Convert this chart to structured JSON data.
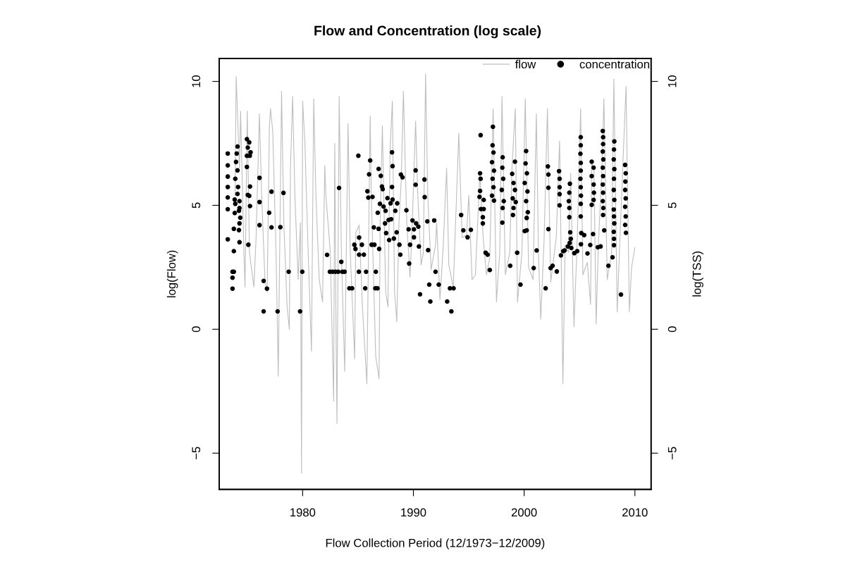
{
  "chart_data": {
    "type": "line",
    "title": "Flow and Concentration (log scale)",
    "xlabel": "Flow Collection Period (12/1973−12/2009)",
    "ylabel": "log(Flow)",
    "y2label": "log(TSS)",
    "xlim": [
      1972.47,
      2011.46
    ],
    "xticks": [
      1980,
      1990,
      2000,
      2010
    ],
    "ylim": [
      -6.46,
      10.92
    ],
    "yticks": [
      {
        "value": -5,
        "label": "−5"
      },
      0,
      5,
      10
    ],
    "y2lim": [
      -6.46,
      10.92
    ],
    "y2ticks": [
      {
        "value": -5,
        "label": "−5"
      },
      0,
      5,
      10
    ],
    "legend": "top right",
    "grid": false,
    "series": [
      {
        "name": "flow",
        "color": "#bebebe",
        "marker": "none",
        "line_style": "solid",
        "x": [
          1973.9,
          1974.0,
          1974.3,
          1974.4,
          1974.7,
          1974.8,
          1975.0,
          1975.2,
          1975.6,
          1975.8,
          1976.1,
          1976.3,
          1976.6,
          1976.8,
          1977.0,
          1977.1,
          1977.3,
          1977.6,
          1977.8,
          1977.9,
          1978.1,
          1978.3,
          1978.6,
          1978.8,
          1978.9,
          1979.1,
          1979.3,
          1979.6,
          1979.8,
          1979.9,
          1980.0,
          1980.2,
          1980.5,
          1980.8,
          1981.0,
          1981.2,
          1981.5,
          1981.8,
          1982.0,
          1982.1,
          1982.5,
          1982.8,
          1982.9,
          1983.0,
          1983.1,
          1983.3,
          1983.5,
          1983.8,
          1984.1,
          1984.3,
          1984.7,
          1984.8,
          1985.1,
          1985.4,
          1985.8,
          1986.1,
          1986.2,
          1986.6,
          1986.9,
          1987.0,
          1987.2,
          1987.5,
          1987.7,
          1987.9,
          1988.1,
          1988.3,
          1988.5,
          1988.7,
          1988.9,
          1989.1,
          1989.4,
          1989.7,
          1989.9,
          1990.2,
          1990.4,
          1990.7,
          1990.9,
          1991.1,
          1991.3,
          1991.6,
          1992.0,
          1992.1,
          1992.4,
          1992.7,
          1993.0,
          1993.2,
          1993.6,
          1994.1,
          1994.4,
          1994.8,
          1995.0,
          1995.3,
          1995.6,
          1996.0,
          1996.3,
          1996.6,
          1996.9,
          1997.2,
          1997.5,
          1997.8,
          1998.0,
          1998.3,
          1998.7,
          1998.9,
          1999.2,
          1999.4,
          1999.8,
          2000.1,
          2000.4,
          2000.8,
          2001.1,
          2001.3,
          2001.5,
          2001.8,
          2002.1,
          2002.4,
          2002.9,
          2003.2,
          2003.5,
          2003.7,
          2004.0,
          2004.2,
          2004.5,
          2004.8,
          2005.1,
          2005.3,
          2005.7,
          2006.0,
          2006.1,
          2006.3,
          2006.5,
          2006.7,
          2007.0,
          2007.2,
          2007.5,
          2007.9,
          2008.1,
          2008.4,
          2008.6,
          2008.9,
          2009.2,
          2009.5,
          2009.7,
          2010.0
        ],
        "values": [
          5.4,
          10.2,
          6.5,
          8.8,
          3.1,
          1.7,
          8.8,
          3.1,
          1.7,
          3.7,
          8.7,
          5.4,
          2.0,
          1.5,
          8.2,
          8.9,
          8.0,
          3.1,
          -1.9,
          2.0,
          9.6,
          4.3,
          0.9,
          0.0,
          6.5,
          9.4,
          5.4,
          2.0,
          4.3,
          -5.8,
          9.2,
          7.6,
          3.1,
          -0.9,
          9.3,
          5.4,
          2.0,
          1.1,
          6.6,
          5.4,
          3.1,
          -2.9,
          7.5,
          0.9,
          -3.8,
          9.4,
          3.1,
          -1.7,
          8.3,
          3.1,
          -1.2,
          3.9,
          4.2,
          0.9,
          -2.2,
          8.6,
          5.4,
          -1.1,
          -2.0,
          4.3,
          8.2,
          1.5,
          0.9,
          7.3,
          9.2,
          1.5,
          0.3,
          4.3,
          6.0,
          9.6,
          4.3,
          2.1,
          4.3,
          8.4,
          5.4,
          2.6,
          3.1,
          10.3,
          5.4,
          2.4,
          3.4,
          4.3,
          1.2,
          3.4,
          6.5,
          2.6,
          1.7,
          7.9,
          3.7,
          3.8,
          5.4,
          2.0,
          2.2,
          6.3,
          3.7,
          2.2,
          2.9,
          8.9,
          1.1,
          3.1,
          9.4,
          2.2,
          3.1,
          6.5,
          8.9,
          1.1,
          3.1,
          9.3,
          2.5,
          2.0,
          8.7,
          2.9,
          0.4,
          3.6,
          8.9,
          1.9,
          3.7,
          7.6,
          -2.2,
          3.4,
          3.1,
          6.3,
          0.1,
          3.7,
          8.9,
          2.2,
          2.7,
          1.0,
          6.7,
          6.5,
          0.2,
          3.4,
          6.2,
          9.3,
          2.0,
          3.1,
          10.1,
          0.7,
          3.1,
          6.5,
          9.8,
          0.7,
          2.5,
          3.3
        ]
      },
      {
        "name": "concentration",
        "type": "scatter",
        "color": "#000000",
        "marker": "circle",
        "x": [
          1973.24,
          1973.24,
          1973.24,
          1973.24,
          1973.24,
          1973.24,
          1973.24,
          1974.12,
          1974.05,
          1973.99,
          1974.12,
          1973.92,
          1974.17,
          1974.12,
          1973.87,
          1974.3,
          1973.92,
          1974.3,
          1974.25,
          1973.87,
          1974.37,
          1974.3,
          1973.79,
          1974.25,
          1974.3,
          1973.79,
          1973.67,
          1973.79,
          1973.67,
          1973.67,
          1974.97,
          1975.18,
          1975.05,
          1975.3,
          1974.97,
          1975.23,
          1974.97,
          1975.25,
          1975.05,
          1975.18,
          1975.25,
          1975.1,
          1976.11,
          1976.11,
          1976.11,
          1976.48,
          1976.78,
          1976.48,
          1976.98,
          1977.19,
          1977.19,
          1977.74,
          1977.99,
          1978.27,
          1978.74,
          1979.77,
          1979.97,
          1982.21,
          1982.46,
          1982.71,
          1982.96,
          1983.22,
          1983.29,
          1983.49,
          1983.59,
          1983.79,
          1984.22,
          1984.47,
          1984.67,
          1984.77,
          1985.03,
          1985.1,
          1985.1,
          1985.35,
          1985.53,
          1985.08,
          1985.65,
          1985.73,
          1985.85,
          1985.93,
          1986.0,
          1986.1,
          1986.31,
          1986.43,
          1986.23,
          1986.48,
          1986.61,
          1986.56,
          1986.76,
          1986.78,
          1986.86,
          1986.91,
          1986.86,
          1987.06,
          1986.98,
          1987.16,
          1987.23,
          1987.31,
          1987.49,
          1987.44,
          1987.54,
          1987.66,
          1987.76,
          1987.81,
          1987.94,
          1987.99,
          1988.07,
          1988.12,
          1988.12,
          1988.07,
          1988.24,
          1988.37,
          1988.49,
          1988.54,
          1988.74,
          1988.82,
          1988.87,
          1989.02,
          1989.37,
          1989.57,
          1989.62,
          1989.7,
          1989.92,
          1990.05,
          1990.05,
          1990.2,
          1990.2,
          1990.25,
          1990.45,
          1990.5,
          1990.6,
          1991.0,
          1991.02,
          1991.26,
          1991.33,
          1991.43,
          1991.53,
          1991.88,
          1992.0,
          1992.29,
          1993.3,
          1993.63,
          1993.05,
          1993.43,
          1994.31,
          1994.51,
          1994.89,
          1995.19,
          1996.07,
          1996.02,
          1996.07,
          1996.02,
          1995.97,
          1996.1,
          1996.35,
          1996.35,
          1996.27,
          1996.27,
          1996.52,
          1996.7,
          1996.9,
          1997.18,
          1997.15,
          1997.23,
          1997.1,
          1997.28,
          1997.15,
          1997.23,
          1997.1,
          1997.28,
          1998.06,
          1998.03,
          1998.11,
          1997.98,
          1998.16,
          1998.06,
          1998.03,
          1998.74,
          1999.17,
          1998.92,
          1999.04,
          1999.17,
          1998.97,
          1999.24,
          1999.04,
          1998.99,
          1999.37,
          1999.67,
          2000.18,
          2000.13,
          2000.25,
          2000.05,
          2000.3,
          2000.18,
          2000.33,
          2000.23,
          2000.05,
          2000.23,
          2000.86,
          2001.13,
          2002.14,
          2002.19,
          2002.19,
          2002.19,
          2001.94,
          2002.39,
          2002.57,
          2002.95,
          2003.15,
          2003.2,
          2003.2,
          2003.2,
          2003.2,
          2003.32,
          2003.53,
          2003.65,
          2004.13,
          2004.08,
          2004.03,
          2004.08,
          2004.08,
          2004.16,
          2004.21,
          2004.11,
          2003.95,
          2004.26,
          2004.53,
          2004.79,
          2005.11,
          2005.11,
          2005.08,
          2005.11,
          2005.11,
          2005.08,
          2005.11,
          2005.13,
          2005.11,
          2005.11,
          2005.16,
          2005.42,
          2005.13,
          2005.72,
          2005.97,
          2006.1,
          2006.27,
          2006.1,
          2006.27,
          2006.3,
          2006.1,
          2006.27,
          2006.22,
          2006.65,
          2006.9,
          2007.1,
          2007.13,
          2007.13,
          2007.1,
          2007.15,
          2007.1,
          2007.13,
          2007.1,
          2007.13,
          2007.1,
          2007.15,
          2007.13,
          2007.23,
          2007.61,
          2008.14,
          2008.11,
          2008.09,
          2008.14,
          2008.11,
          2008.09,
          2008.14,
          2008.09,
          2008.11,
          2008.14,
          2008.09,
          2008.11,
          2008.11,
          2007.98,
          2008.74,
          2009.12,
          2009.17,
          2009.14,
          2009.12,
          2009.17,
          2009.12,
          2009.17,
          2009.12,
          2009.19
        ],
        "values": [
          7.09,
          6.61,
          6.16,
          5.74,
          5.32,
          4.84,
          3.63,
          7.37,
          7.09,
          6.75,
          6.41,
          6.07,
          5.74,
          5.46,
          5.23,
          5.17,
          5.06,
          4.89,
          4.78,
          4.69,
          4.5,
          4.27,
          4.05,
          4.0,
          3.51,
          3.15,
          2.32,
          2.32,
          2.08,
          1.64,
          7.67,
          7.54,
          7.33,
          7.14,
          7.0,
          7.0,
          6.55,
          5.76,
          5.42,
          5.38,
          4.97,
          3.41,
          6.11,
          5.13,
          4.2,
          1.95,
          1.64,
          0.72,
          4.7,
          5.55,
          4.11,
          0.72,
          4.12,
          5.5,
          2.32,
          0.72,
          2.32,
          3.0,
          2.32,
          2.32,
          2.32,
          2.32,
          5.7,
          2.72,
          2.32,
          2.32,
          1.65,
          1.65,
          3.41,
          3.24,
          7.0,
          3.7,
          3.01,
          3.41,
          3.01,
          2.32,
          1.65,
          2.32,
          5.57,
          5.31,
          6.25,
          6.81,
          5.34,
          4.11,
          3.41,
          3.41,
          2.32,
          1.65,
          1.65,
          4.7,
          4.05,
          3.24,
          6.47,
          6.19,
          5.06,
          5.76,
          5.65,
          4.95,
          4.78,
          4.27,
          3.88,
          5.29,
          4.41,
          3.6,
          5.08,
          4.44,
          7.14,
          6.58,
          5.23,
          5.74,
          3.66,
          4.78,
          3.91,
          5.08,
          3.41,
          3.01,
          6.24,
          6.13,
          4.8,
          4.03,
          2.65,
          3.41,
          4.39,
          4.03,
          3.71,
          6.41,
          5.83,
          4.27,
          4.14,
          3.34,
          1.41,
          6.04,
          5.33,
          4.35,
          3.19,
          1.8,
          1.12,
          4.39,
          2.32,
          1.8,
          1.65,
          1.65,
          1.12,
          0.72,
          4.61,
          3.99,
          3.71,
          4.01,
          7.83,
          6.29,
          6.07,
          5.58,
          5.34,
          4.85,
          5.22,
          4.85,
          4.52,
          4.27,
          3.09,
          3.01,
          2.39,
          8.17,
          7.42,
          7.13,
          6.74,
          6.4,
          6.07,
          5.73,
          5.39,
          5.19,
          6.94,
          6.52,
          6.07,
          5.62,
          5.17,
          4.89,
          4.3,
          2.56,
          6.76,
          6.27,
          5.9,
          5.62,
          5.28,
          5.13,
          4.89,
          4.61,
          3.09,
          1.8,
          7.19,
          6.69,
          6.29,
          5.9,
          5.56,
          5.17,
          4.72,
          4.49,
          3.96,
          3.99,
          2.47,
          3.18,
          6.57,
          6.24,
          5.71,
          4.04,
          1.65,
          2.47,
          2.56,
          2.33,
          6.38,
          6.07,
          5.73,
          5.45,
          5.0,
          2.98,
          3.15,
          3.18,
          5.87,
          5.51,
          5.17,
          4.89,
          4.52,
          3.91,
          3.65,
          3.48,
          3.34,
          3.28,
          3.07,
          3.15,
          7.75,
          7.42,
          7.08,
          6.71,
          6.4,
          6.07,
          5.73,
          5.39,
          5.06,
          4.55,
          3.88,
          3.8,
          3.43,
          3.06,
          3.4,
          6.76,
          6.52,
          6.18,
          5.84,
          5.51,
          5.02,
          5.22,
          3.84,
          3.31,
          3.34,
          8.0,
          7.75,
          7.47,
          7.17,
          6.85,
          6.52,
          6.18,
          5.84,
          5.51,
          5.17,
          4.89,
          4.61,
          3.99,
          2.56,
          7.58,
          7.25,
          6.85,
          6.46,
          6.07,
          5.62,
          5.22,
          4.83,
          4.55,
          4.27,
          3.93,
          3.65,
          3.39,
          2.9,
          1.4,
          6.63,
          6.29,
          5.96,
          5.62,
          5.28,
          4.94,
          4.55,
          4.21,
          3.89
        ]
      }
    ]
  }
}
